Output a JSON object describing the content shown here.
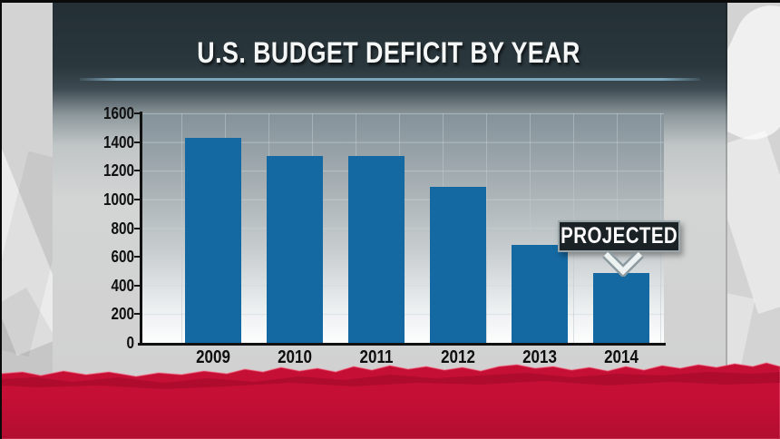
{
  "header": {
    "title": "U.S. BUDGET DEFICIT BY YEAR"
  },
  "annotation": {
    "label": "PROJECTED",
    "target_category": "2014",
    "arrow": "chevron-down"
  },
  "chart_data": {
    "type": "bar",
    "title": "U.S. BUDGET DEFICIT BY YEAR",
    "categories": [
      "2009",
      "2010",
      "2011",
      "2012",
      "2013",
      "2014"
    ],
    "values": [
      1430,
      1300,
      1300,
      1090,
      680,
      490
    ],
    "xlabel": "",
    "ylabel": "",
    "ylim": [
      0,
      1600
    ],
    "yticks": [
      0,
      200,
      400,
      600,
      800,
      1000,
      1200,
      1400,
      1600
    ],
    "ytick_labels_top_down": [
      "1600",
      "1400",
      "1200",
      "1000",
      "800",
      "600",
      "400",
      "200",
      "0"
    ],
    "grid": true,
    "legend": "none",
    "annotations": [
      {
        "text": "PROJECTED",
        "category": "2014"
      }
    ],
    "bar_color": "#1569a2"
  },
  "colors": {
    "bar": "#1569a2",
    "panel_header": "#2a373d",
    "title_underline": "#7ca6bc",
    "badge_background": "#1a2226",
    "badge_text": "#ffffff",
    "red_banner": "#c60f35",
    "background": "#d3d3d3",
    "axis": "#111111"
  }
}
